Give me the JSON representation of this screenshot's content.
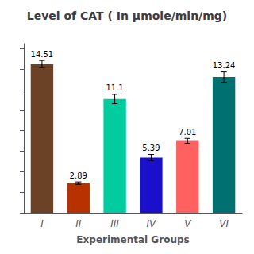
{
  "chart_data": {
    "type": "bar",
    "title": "Level of CAT ( In μmole/min/mg)",
    "categories": [
      "I",
      "II",
      "III",
      "IV",
      "V",
      "VI"
    ],
    "values": [
      14.51,
      2.89,
      11.1,
      5.39,
      7.01,
      13.24
    ],
    "errors": [
      0.35,
      0.12,
      0.45,
      0.3,
      0.25,
      0.5
    ],
    "colors": [
      "#6B4226",
      "#B83200",
      "#00CCA0",
      "#1A10CC",
      "#FF6060",
      "#007070"
    ],
    "xlabel": "Experimental Groups",
    "ylim": [
      0,
      16.5
    ],
    "yticks": [
      0,
      2,
      4,
      6,
      8,
      10,
      12,
      14,
      16
    ],
    "grid": false,
    "data_labels": true,
    "tick_labels": "x"
  }
}
